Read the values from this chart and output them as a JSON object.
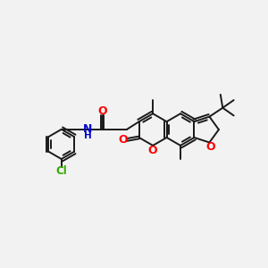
{
  "bg_color": "#f2f2f2",
  "bond_color": "#1a1a1a",
  "o_color": "#ff0000",
  "n_color": "#0000cc",
  "cl_color": "#33aa00",
  "lw": 1.4,
  "dbg": 0.055,
  "fs": 8.5,
  "figsize": [
    3.0,
    3.0
  ],
  "dpi": 100,
  "xlim": [
    0,
    12
  ],
  "ylim": [
    0,
    10
  ]
}
